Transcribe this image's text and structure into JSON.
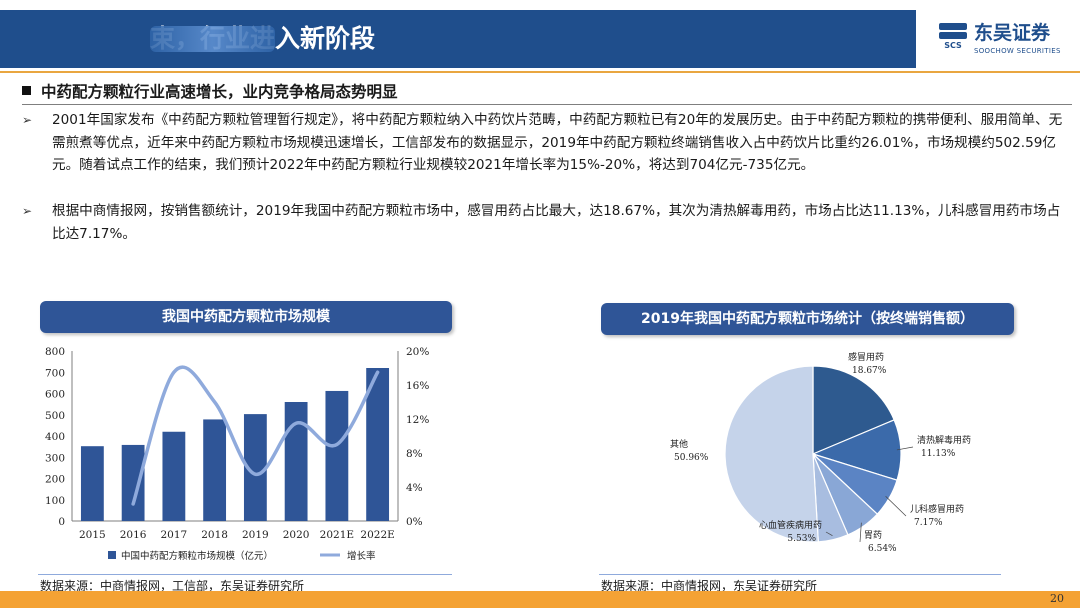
{
  "header": {
    "title_visible": "束，行业进入新阶段",
    "brand_cn": "东吴证券",
    "brand_en": "SOOCHOW SECURITIES",
    "brand_mark": "SCS",
    "band_color": "#1f4e8c",
    "accent_color": "#e9a640"
  },
  "section": {
    "title": "中药配方颗粒行业高速增长，业内竞争格局态势明显"
  },
  "bullets": [
    {
      "icon": "arrow-bullet-icon",
      "marker": "➢",
      "text": "2001年国家发布《中药配方颗粒管理暂行规定》，将中药配方颗粒纳入中药饮片范畴，中药配方颗粒已有20年的发展历史。由于中药配方颗粒的携带便利、服用简单、无需煎煮等优点，近年来中药配方颗粒市场规模迅速增长，工信部发布的数据显示，2019年中药配方颗粒终端销售收入占中药饮片比重约26.01%，市场规模约502.59亿元。随着试点工作的结束，我们预计2022年中药配方颗粒行业规模较2021年增长率为15%-20%，将达到704亿元-735亿元。"
    },
    {
      "icon": "arrow-bullet-icon",
      "marker": "➢",
      "text": "根据中商情报网，按销售额统计，2019年我国中药配方颗粒市场中，感冒用药占比最大，达18.67%，其次为清热解毒用药，市场占比达11.13%，儿科感冒用药市场占比达7.17%。"
    }
  ],
  "charts": {
    "left": {
      "title": "我国中药配方颗粒市场规模",
      "source": "数据来源：中商情报网，工信部，东吴证券研究所",
      "bar_color": "#2f5597",
      "line_color": "#8faadc",
      "y_left_ticks": [
        "0",
        "100",
        "200",
        "300",
        "400",
        "500",
        "600",
        "700",
        "800"
      ],
      "y_right_ticks": [
        "0%",
        "4%",
        "8%",
        "12%",
        "16%",
        "20%"
      ]
    },
    "right": {
      "title": "2019年我国中药配方颗粒市场统计（按终端销售额）",
      "source": "数据来源：中商情报网，东吴证券研究所",
      "colors": [
        "#2e5a8f",
        "#3b6aaa",
        "#5b84c4",
        "#89a7d6",
        "#a8bde0",
        "#c5d3ea"
      ]
    }
  },
  "chart_data": [
    {
      "type": "bar",
      "title": "我国中药配方颗粒市场规模",
      "categories": [
        "2015",
        "2016",
        "2017",
        "2018",
        "2019",
        "2020",
        "2021E",
        "2022E"
      ],
      "series": [
        {
          "name": "中国中药配方颗粒市场规模（亿元）",
          "type": "bar",
          "axis": "left",
          "values": [
            352,
            358,
            420,
            478,
            503,
            560,
            612,
            720
          ]
        },
        {
          "name": "增长率",
          "type": "line",
          "axis": "right",
          "smooth": true,
          "values": [
            null,
            0.02,
            0.175,
            0.14,
            0.055,
            0.115,
            0.09,
            0.175
          ]
        }
      ],
      "ylim_left": [
        0,
        800
      ],
      "ylim_right": [
        0,
        0.2
      ],
      "legend_position": "bottom"
    },
    {
      "type": "pie",
      "title": "2019年我国中药配方颗粒市场统计（按终端销售额）",
      "slices": [
        {
          "label": "感冒用药",
          "value": 18.67,
          "text": "18.67%"
        },
        {
          "label": "清热解毒用药",
          "value": 11.13,
          "text": "11.13%"
        },
        {
          "label": "儿科感冒用药",
          "value": 7.17,
          "text": "7.17%"
        },
        {
          "label": "胃药",
          "value": 6.54,
          "text": "6.54%"
        },
        {
          "label": "心血管疾病用药",
          "value": 5.53,
          "text": "5.53%"
        },
        {
          "label": "其他",
          "value": 50.96,
          "text": "50.96%"
        }
      ]
    }
  ],
  "footer": {
    "page": "20"
  }
}
